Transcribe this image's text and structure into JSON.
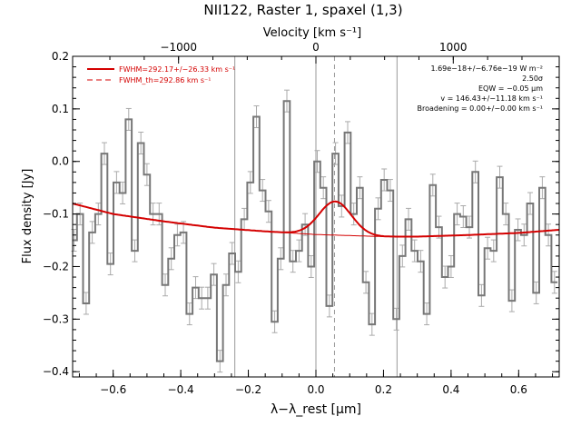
{
  "chart_data": {
    "type": "line",
    "title": "NII122, Raster 1, spaxel (1,3)",
    "xlabel": "λ−λ_rest [μm]",
    "ylabel": "Flux density [Jy]",
    "top_axis_label": "Velocity [km s⁻¹]",
    "xlim": [
      -0.72,
      0.72
    ],
    "ylim": [
      -0.41,
      0.2
    ],
    "bottom_ticks": [
      -0.6,
      -0.4,
      -0.2,
      0.0,
      0.2,
      0.4,
      0.6
    ],
    "bottom_tick_labels": [
      "−0.6",
      "−0.4",
      "−0.2",
      "0.0",
      "0.2",
      "0.4",
      "0.6"
    ],
    "left_ticks": [
      -0.4,
      -0.3,
      -0.2,
      -0.1,
      0.0,
      0.1,
      0.2
    ],
    "left_tick_labels": [
      "−0.4",
      "−0.3",
      "−0.2",
      "−0.1",
      "0.0",
      "0.1",
      "0.2"
    ],
    "top_ticks_km_s": [
      -1000,
      0,
      1000
    ],
    "top_tick_labels": [
      "−1000",
      "0",
      "1000"
    ],
    "km_s_per_um": 2460,
    "vertical_lines_solid": [
      -0.24,
      0.0,
      0.24
    ],
    "vertical_line_dashed": 0.055,
    "spectrum": {
      "name": "data",
      "x": [
        -0.716,
        -0.698,
        -0.68,
        -0.662,
        -0.644,
        -0.626,
        -0.608,
        -0.59,
        -0.572,
        -0.554,
        -0.536,
        -0.518,
        -0.5,
        -0.482,
        -0.464,
        -0.446,
        -0.428,
        -0.41,
        -0.392,
        -0.374,
        -0.356,
        -0.338,
        -0.32,
        -0.302,
        -0.284,
        -0.266,
        -0.248,
        -0.23,
        -0.212,
        -0.194,
        -0.176,
        -0.158,
        -0.14,
        -0.122,
        -0.104,
        -0.086,
        -0.068,
        -0.05,
        -0.032,
        -0.014,
        0.004,
        0.022,
        0.04,
        0.058,
        0.076,
        0.094,
        0.112,
        0.13,
        0.148,
        0.166,
        0.184,
        0.202,
        0.22,
        0.238,
        0.256,
        0.274,
        0.292,
        0.31,
        0.328,
        0.346,
        0.364,
        0.382,
        0.4,
        0.418,
        0.436,
        0.454,
        0.472,
        0.49,
        0.508,
        0.526,
        0.544,
        0.562,
        0.58,
        0.598,
        0.616,
        0.634,
        0.652,
        0.67,
        0.688,
        0.706
      ],
      "y": [
        -0.15,
        -0.1,
        -0.27,
        -0.135,
        -0.1,
        0.015,
        -0.195,
        -0.04,
        -0.06,
        0.08,
        -0.17,
        0.035,
        -0.025,
        -0.1,
        -0.1,
        -0.235,
        -0.185,
        -0.14,
        -0.135,
        -0.29,
        -0.24,
        -0.26,
        -0.26,
        -0.215,
        -0.38,
        -0.235,
        -0.175,
        -0.21,
        -0.11,
        -0.04,
        0.085,
        -0.055,
        -0.095,
        -0.305,
        -0.185,
        0.115,
        -0.19,
        -0.17,
        -0.12,
        -0.2,
        0.0,
        -0.05,
        -0.275,
        0.015,
        -0.085,
        0.055,
        -0.1,
        -0.05,
        -0.23,
        -0.31,
        -0.09,
        -0.035,
        -0.055,
        -0.3,
        -0.18,
        -0.11,
        -0.17,
        -0.19,
        -0.29,
        -0.045,
        -0.125,
        -0.22,
        -0.2,
        -0.1,
        -0.105,
        -0.125,
        -0.02,
        -0.255,
        -0.165,
        -0.17,
        -0.03,
        -0.1,
        -0.265,
        -0.13,
        -0.14,
        -0.08,
        -0.25,
        -0.05,
        -0.14,
        -0.23
      ],
      "color": "#777777"
    },
    "fit_curve": {
      "name": "FWHM=292.17+/−26.33 km s⁻¹",
      "continuum_points": [
        [
          -0.72,
          -0.08
        ],
        [
          -0.6,
          -0.1
        ],
        [
          -0.45,
          -0.114
        ],
        [
          -0.3,
          -0.126
        ],
        [
          -0.15,
          -0.133
        ],
        [
          0.0,
          -0.139
        ],
        [
          0.1,
          -0.141
        ],
        [
          0.2,
          -0.143
        ],
        [
          0.3,
          -0.143
        ],
        [
          0.45,
          -0.14
        ],
        [
          0.6,
          -0.136
        ],
        [
          0.72,
          -0.13
        ]
      ],
      "gaussian_center": 0.057,
      "gaussian_peak": 0.064,
      "gaussian_sigma": 0.048,
      "color": "#d40000"
    },
    "legend": {
      "position": "top-left",
      "entries": [
        "FWHM=292.17+/−26.33 km s⁻¹",
        "FWHM_th=292.86 km s⁻¹"
      ]
    },
    "annotations": {
      "position": "top-right",
      "lines": [
        "1.69e−18+/−6.76e−19 W m⁻²",
        "2.50σ",
        "EQW = −0.05 μm",
        "v = 146.43+/−11.18 km s⁻¹",
        "Broadening = 0.00+/−0.00 km s⁻¹"
      ]
    }
  },
  "colors": {
    "fit": "#d40000",
    "data": "#777777",
    "error_bars": "#aaaaaa",
    "vlines": "#999999",
    "axes": "#000000"
  }
}
